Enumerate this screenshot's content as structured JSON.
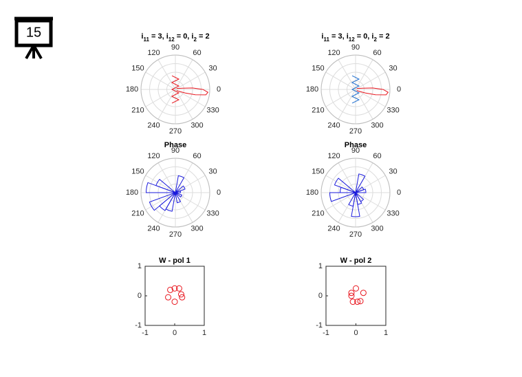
{
  "slide_number": "15",
  "chart_data": [
    {
      "type": "polar",
      "title": [
        "i",
        "11",
        " = 3, i",
        "12",
        " = 0, i",
        "2",
        " = 2"
      ],
      "thetaticks": [
        0,
        30,
        60,
        90,
        120,
        150,
        180,
        210,
        240,
        270,
        300,
        330
      ],
      "rlim": [
        0,
        1
      ],
      "rticks": [
        0.25,
        0.5,
        0.75,
        1
      ],
      "series": [
        {
          "color": "#e8141c",
          "theta": [
            320,
            330,
            340,
            345,
            350,
            355,
            0,
            5,
            10,
            20,
            40
          ],
          "r": [
            0.05,
            0.1,
            0.3,
            0.6,
            0.9,
            0.95,
            0.8,
            0.5,
            0.2,
            0.08,
            0.05
          ]
        },
        {
          "color": "#e8141c",
          "theta": [
            104,
            71.6,
            116.6,
            45,
            180,
            315,
            243.4,
            288.4,
            256
          ],
          "r": [
            0.412,
            0.316,
            0.224,
            0.141,
            0.1,
            0.141,
            0.224,
            0.316,
            0.412
          ]
        }
      ]
    },
    {
      "type": "polar",
      "title": [
        "i",
        "11",
        " = 3, i",
        "12",
        " = 0, i",
        "2",
        " = 2"
      ],
      "thetaticks": [
        0,
        30,
        60,
        90,
        120,
        150,
        180,
        210,
        240,
        270,
        300,
        330
      ],
      "rlim": [
        0,
        1
      ],
      "rticks": [
        0.25,
        0.5,
        0.75,
        1
      ],
      "series": [
        {
          "color": "#e8141c",
          "theta": [
            320,
            330,
            340,
            345,
            350,
            355,
            0,
            5,
            10,
            20,
            40
          ],
          "r": [
            0.05,
            0.1,
            0.3,
            0.6,
            0.9,
            0.95,
            0.8,
            0.5,
            0.2,
            0.08,
            0.05
          ]
        },
        {
          "color": "#1f6fd0",
          "theta": [
            104,
            71.6,
            116.6,
            45,
            180,
            315,
            243.4,
            288.4,
            256
          ],
          "r": [
            0.412,
            0.316,
            0.224,
            0.141,
            0.1,
            0.141,
            0.224,
            0.316,
            0.412
          ]
        }
      ]
    },
    {
      "type": "polar_histogram",
      "title": "Phase",
      "color": "#1a1adc",
      "thetaticks": [
        0,
        30,
        60,
        90,
        120,
        150,
        180,
        210,
        240,
        270,
        300,
        330
      ],
      "rlim": [
        0,
        1
      ],
      "rticks": [
        0.25,
        0.5,
        0.75,
        1
      ],
      "bin_edges": [
        0,
        20,
        40,
        60,
        80,
        100,
        120,
        140,
        160,
        180,
        200,
        220,
        240,
        260,
        280,
        300,
        320,
        340,
        360
      ],
      "counts": [
        0.15,
        0.3,
        0,
        0.5,
        0,
        0,
        0,
        0.6,
        0.85,
        0,
        0.8,
        0.6,
        0.55,
        0,
        0.3,
        0,
        0.2,
        0
      ]
    },
    {
      "type": "polar_histogram",
      "title": "Phase",
      "color": "#1a1adc",
      "thetaticks": [
        0,
        30,
        60,
        90,
        120,
        150,
        180,
        210,
        240,
        270,
        300,
        330
      ],
      "rlim": [
        0,
        1
      ],
      "rticks": [
        0.25,
        0.5,
        0.75,
        1
      ],
      "bin_edges": [
        0,
        20,
        40,
        60,
        80,
        100,
        120,
        140,
        160,
        180,
        200,
        220,
        240,
        260,
        280,
        300,
        320,
        340,
        360
      ],
      "counts": [
        0.3,
        0.25,
        0,
        0.55,
        0,
        0,
        0,
        0.65,
        0.45,
        0.75,
        0,
        0,
        0.4,
        0.7,
        0.35,
        0.3,
        0,
        0
      ]
    },
    {
      "type": "scatter",
      "title": "W - pol 1",
      "color": "#e8141c",
      "xlim": [
        -1,
        1
      ],
      "ylim": [
        -1,
        1
      ],
      "xticks": [
        -1,
        0,
        1
      ],
      "yticks": [
        -1,
        0,
        1
      ],
      "x": [
        -0.15,
        0,
        0.15,
        0.22,
        0.25,
        -0.22,
        0
      ],
      "y": [
        0.2,
        0.25,
        0.25,
        0.05,
        -0.05,
        -0.05,
        -0.2
      ]
    },
    {
      "type": "scatter",
      "title": "W - pol 2",
      "color": "#e8141c",
      "xlim": [
        -1,
        1
      ],
      "ylim": [
        -1,
        1
      ],
      "xticks": [
        -1,
        0,
        1
      ],
      "yticks": [
        -1,
        0,
        1
      ],
      "x": [
        0,
        0.25,
        -0.15,
        -0.15,
        -0.1,
        0.05,
        0.15
      ],
      "y": [
        0.25,
        0.1,
        0.1,
        0,
        -0.2,
        -0.2,
        -0.18
      ]
    }
  ]
}
